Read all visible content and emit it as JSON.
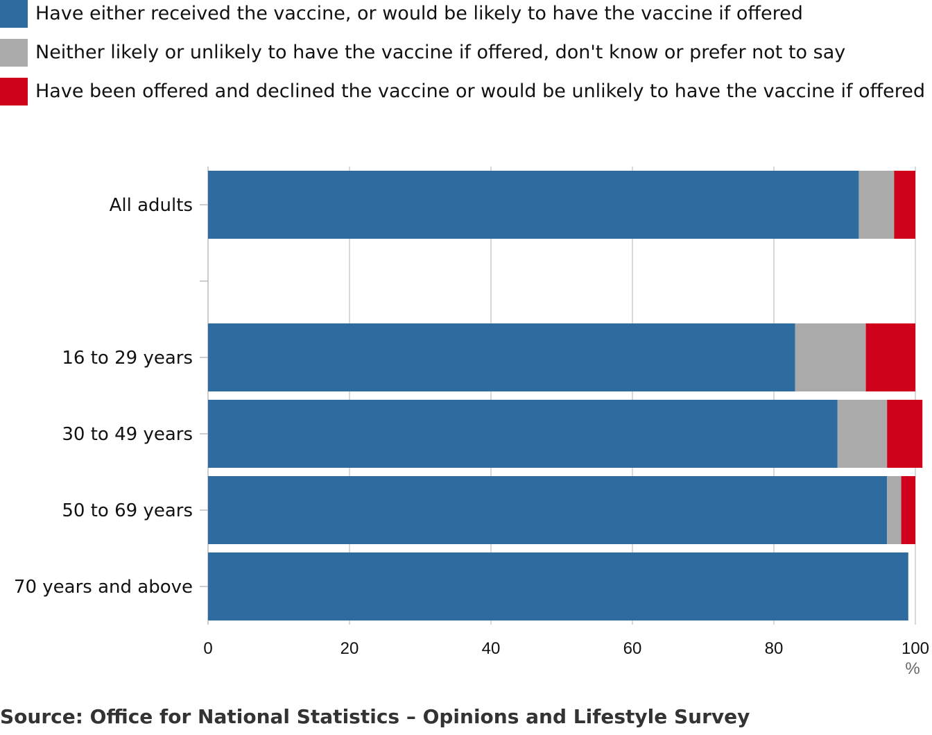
{
  "legend": {
    "items": [
      {
        "label": "Have either received the vaccine, or would be likely to have the vaccine if offered",
        "color": "#2e6b9e"
      },
      {
        "label": "Neither likely or unlikely to have the vaccine if offered, don't know or prefer not to say",
        "color": "#aaaaaa"
      },
      {
        "label": "Have been offered and declined the vaccine or would be unlikely to have the vaccine if offered",
        "color": "#d0021b"
      }
    ]
  },
  "source": "Source: Office for National Statistics – Opinions and Lifestyle Survey",
  "chart_data": {
    "type": "bar",
    "orientation": "horizontal",
    "stacked": true,
    "categories": [
      "All adults",
      "",
      "16 to 29 years",
      "30 to 49 years",
      "50 to 69 years",
      "70 years and above"
    ],
    "series": [
      {
        "name": "Have either received the vaccine, or would be likely to have the vaccine if offered",
        "color": "#2e6b9e",
        "values": [
          92,
          null,
          83,
          89,
          96,
          99
        ]
      },
      {
        "name": "Neither likely or unlikely to have the vaccine if offered, don't know or prefer not to say",
        "color": "#aaaaaa",
        "values": [
          5,
          null,
          10,
          7,
          2,
          0
        ]
      },
      {
        "name": "Have been offered and declined the vaccine or would be unlikely to have the vaccine if offered",
        "color": "#d0021b",
        "values": [
          3,
          null,
          7,
          5,
          2,
          0
        ]
      }
    ],
    "xlim": [
      0,
      100
    ],
    "xticks": [
      0,
      20,
      40,
      60,
      80,
      100
    ],
    "xlabel": "%",
    "grid": true,
    "legend_position": "top"
  }
}
